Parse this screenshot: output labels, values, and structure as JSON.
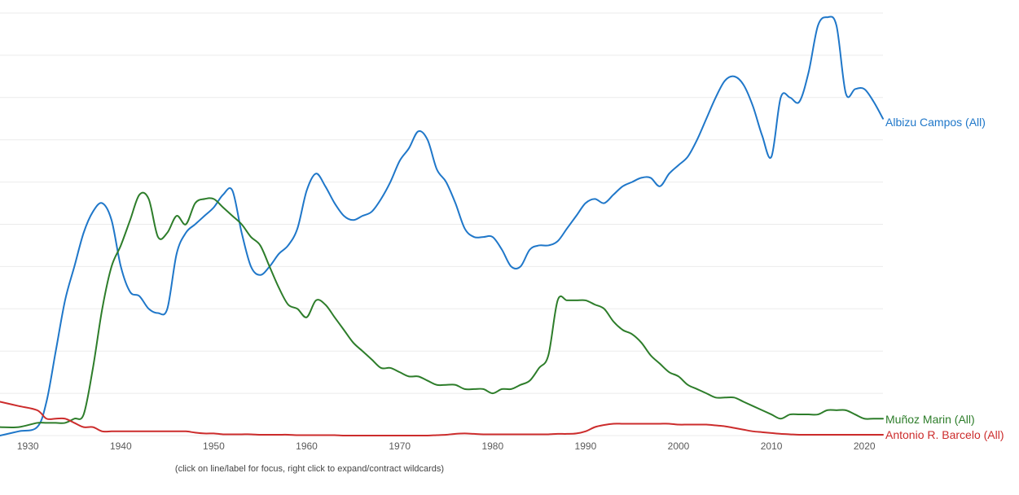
{
  "chart_data": {
    "type": "line",
    "title": "",
    "xlabel": "",
    "ylabel": "",
    "xlim": [
      1927,
      2022
    ],
    "ylim": [
      0,
      100
    ],
    "grid": true,
    "y_tick_labels_visible": false,
    "x_ticks": [
      1930,
      1940,
      1950,
      1960,
      1970,
      1980,
      1990,
      2000,
      2010,
      2020
    ],
    "legend": "right-end labels",
    "hint": "(click on line/label for focus, right click to expand/contract wildcards)",
    "series": [
      {
        "name": "Albizu Campos (All)",
        "color": "#1f77c9",
        "x": [
          1927,
          1929,
          1931,
          1932,
          1933,
          1934,
          1935,
          1936,
          1937,
          1938,
          1939,
          1940,
          1941,
          1942,
          1943,
          1944,
          1945,
          1946,
          1947,
          1948,
          1949,
          1950,
          1951,
          1952,
          1953,
          1954,
          1955,
          1956,
          1957,
          1958,
          1959,
          1960,
          1961,
          1962,
          1963,
          1964,
          1965,
          1966,
          1967,
          1968,
          1969,
          1970,
          1971,
          1972,
          1973,
          1974,
          1975,
          1976,
          1977,
          1978,
          1979,
          1980,
          1981,
          1982,
          1983,
          1984,
          1985,
          1986,
          1987,
          1988,
          1989,
          1990,
          1991,
          1992,
          1993,
          1994,
          1995,
          1996,
          1997,
          1998,
          1999,
          2000,
          2001,
          2002,
          2003,
          2004,
          2005,
          2006,
          2007,
          2008,
          2009,
          2010,
          2011,
          2012,
          2013,
          2014,
          2015,
          2016,
          2017,
          2018,
          2019,
          2020,
          2021,
          2022
        ],
        "values": [
          0,
          1,
          2,
          8,
          20,
          32,
          40,
          48,
          53,
          55,
          51,
          40,
          34,
          33,
          30,
          29,
          30,
          43,
          48,
          50,
          52,
          54,
          57,
          58,
          48,
          40,
          38,
          40,
          43,
          45,
          49,
          58,
          62,
          59,
          55,
          52,
          51,
          52,
          53,
          56,
          60,
          65,
          68,
          72,
          70,
          63,
          60,
          55,
          49,
          47,
          47,
          47,
          44,
          40,
          40,
          44,
          45,
          45,
          46,
          49,
          52,
          55,
          56,
          55,
          57,
          59,
          60,
          61,
          61,
          59,
          62,
          64,
          66,
          70,
          75,
          80,
          84,
          85,
          83,
          78,
          71,
          66,
          80,
          80,
          79,
          86,
          97,
          99,
          97,
          81,
          82,
          82,
          79,
          75
        ],
        "label": "Albizu Campos (All)"
      },
      {
        "name": "Muñoz Marin (All)",
        "color": "#2d7d2a",
        "x": [
          1927,
          1929,
          1931,
          1932,
          1933,
          1934,
          1935,
          1936,
          1937,
          1938,
          1939,
          1940,
          1941,
          1942,
          1943,
          1944,
          1945,
          1946,
          1947,
          1948,
          1949,
          1950,
          1951,
          1952,
          1953,
          1954,
          1955,
          1956,
          1957,
          1958,
          1959,
          1960,
          1961,
          1962,
          1963,
          1964,
          1965,
          1966,
          1967,
          1968,
          1969,
          1970,
          1971,
          1972,
          1973,
          1974,
          1975,
          1976,
          1977,
          1978,
          1979,
          1980,
          1981,
          1982,
          1983,
          1984,
          1985,
          1986,
          1987,
          1988,
          1989,
          1990,
          1991,
          1992,
          1993,
          1994,
          1995,
          1996,
          1997,
          1998,
          1999,
          2000,
          2001,
          2002,
          2003,
          2004,
          2005,
          2006,
          2007,
          2008,
          2009,
          2010,
          2011,
          2012,
          2013,
          2014,
          2015,
          2016,
          2017,
          2018,
          2019,
          2020,
          2021,
          2022
        ],
        "values": [
          2,
          2,
          3,
          3,
          3,
          3,
          4,
          5,
          16,
          30,
          40,
          45,
          51,
          57,
          56,
          47,
          48,
          52,
          50,
          55,
          56,
          56,
          54,
          52,
          50,
          47,
          45,
          40,
          35,
          31,
          30,
          28,
          32,
          31,
          28,
          25,
          22,
          20,
          18,
          16,
          16,
          15,
          14,
          14,
          13,
          12,
          12,
          12,
          11,
          11,
          11,
          10,
          11,
          11,
          12,
          13,
          16,
          19,
          32,
          32,
          32,
          32,
          31,
          30,
          27,
          25,
          24,
          22,
          19,
          17,
          15,
          14,
          12,
          11,
          10,
          9,
          9,
          9,
          8,
          7,
          6,
          5,
          4,
          5,
          5,
          5,
          5,
          6,
          6,
          6,
          5,
          4,
          4,
          4
        ],
        "label": "Muñoz Marin (All)"
      },
      {
        "name": "Antonio R. Barcelo (All)",
        "color": "#cc2c2c",
        "x": [
          1927,
          1929,
          1931,
          1932,
          1933,
          1934,
          1935,
          1936,
          1937,
          1938,
          1939,
          1940,
          1941,
          1942,
          1943,
          1944,
          1945,
          1946,
          1947,
          1948,
          1949,
          1950,
          1951,
          1952,
          1953,
          1954,
          1955,
          1956,
          1957,
          1958,
          1959,
          1960,
          1961,
          1962,
          1963,
          1964,
          1965,
          1966,
          1967,
          1968,
          1969,
          1970,
          1971,
          1972,
          1973,
          1974,
          1975,
          1976,
          1977,
          1978,
          1979,
          1980,
          1981,
          1982,
          1983,
          1984,
          1985,
          1986,
          1987,
          1988,
          1989,
          1990,
          1991,
          1992,
          1993,
          1994,
          1995,
          1996,
          1997,
          1998,
          1999,
          2000,
          2001,
          2002,
          2003,
          2004,
          2005,
          2006,
          2007,
          2008,
          2009,
          2010,
          2011,
          2012,
          2013,
          2014,
          2015,
          2016,
          2017,
          2018,
          2019,
          2020,
          2021,
          2022
        ],
        "values": [
          8,
          7,
          6,
          4,
          4,
          4,
          3,
          2,
          2,
          1,
          1,
          1,
          1,
          1,
          1,
          1,
          1,
          1,
          1,
          0.7,
          0.5,
          0.5,
          0.3,
          0.3,
          0.3,
          0.3,
          0.2,
          0.2,
          0.2,
          0.2,
          0.1,
          0.1,
          0.1,
          0.1,
          0.1,
          0,
          0,
          0,
          0,
          0,
          0,
          0,
          0,
          0,
          0,
          0.1,
          0.2,
          0.4,
          0.5,
          0.4,
          0.3,
          0.3,
          0.3,
          0.3,
          0.3,
          0.3,
          0.3,
          0.3,
          0.4,
          0.4,
          0.5,
          1,
          2,
          2.5,
          2.8,
          2.8,
          2.8,
          2.8,
          2.8,
          2.8,
          2.8,
          2.6,
          2.6,
          2.6,
          2.6,
          2.4,
          2.2,
          1.8,
          1.4,
          1,
          0.8,
          0.6,
          0.4,
          0.3,
          0.2,
          0.2,
          0.2,
          0.2,
          0.2,
          0.2,
          0.2,
          0.2,
          0.2,
          0.2
        ],
        "label": "Antonio R. Barcelo (All)"
      }
    ]
  }
}
